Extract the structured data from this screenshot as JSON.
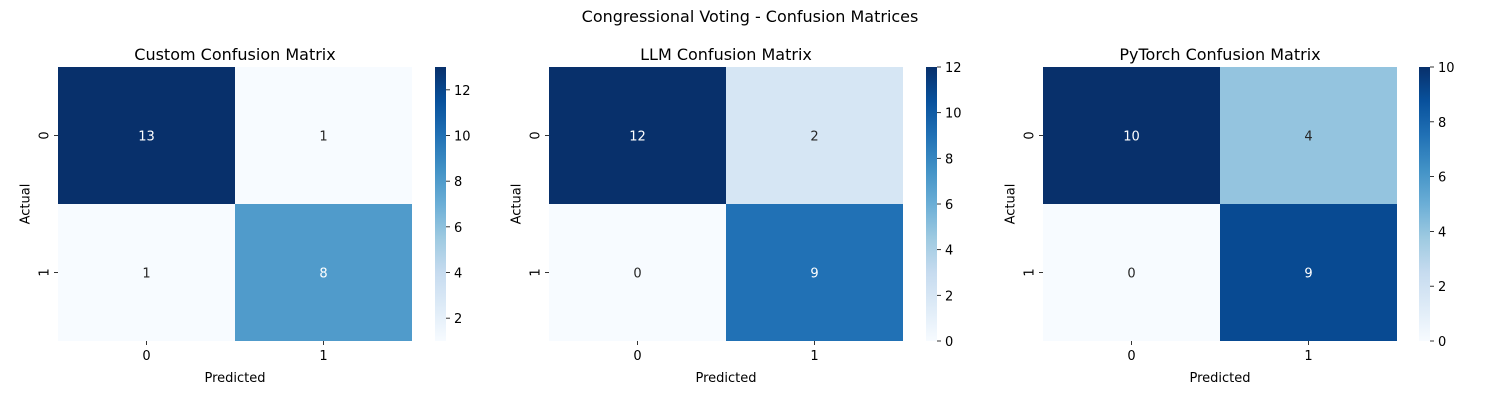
{
  "figure": {
    "title": "Congressional Voting - Confusion Matrices"
  },
  "chart_data": [
    {
      "type": "heatmap",
      "title": "Custom Confusion Matrix",
      "xlabel": "Predicted",
      "ylabel": "Actual",
      "x_categories": [
        "0",
        "1"
      ],
      "y_categories": [
        "0",
        "1"
      ],
      "values": [
        [
          13,
          1
        ],
        [
          1,
          8
        ]
      ],
      "colormap": "Blues",
      "colorbar": {
        "min": 1,
        "max": 13,
        "ticks": [
          2,
          4,
          6,
          8,
          10,
          12
        ]
      }
    },
    {
      "type": "heatmap",
      "title": "LLM Confusion Matrix",
      "xlabel": "Predicted",
      "ylabel": "Actual",
      "x_categories": [
        "0",
        "1"
      ],
      "y_categories": [
        "0",
        "1"
      ],
      "values": [
        [
          12,
          2
        ],
        [
          0,
          9
        ]
      ],
      "colormap": "Blues",
      "colorbar": {
        "min": 0,
        "max": 12,
        "ticks": [
          0,
          2,
          4,
          6,
          8,
          10,
          12
        ]
      }
    },
    {
      "type": "heatmap",
      "title": "PyTorch Confusion Matrix",
      "xlabel": "Predicted",
      "ylabel": "Actual",
      "x_categories": [
        "0",
        "1"
      ],
      "y_categories": [
        "0",
        "1"
      ],
      "values": [
        [
          10,
          4
        ],
        [
          0,
          9
        ]
      ],
      "colormap": "Blues",
      "colorbar": {
        "min": 0,
        "max": 10,
        "ticks": [
          0,
          2,
          4,
          6,
          8,
          10
        ]
      }
    }
  ]
}
